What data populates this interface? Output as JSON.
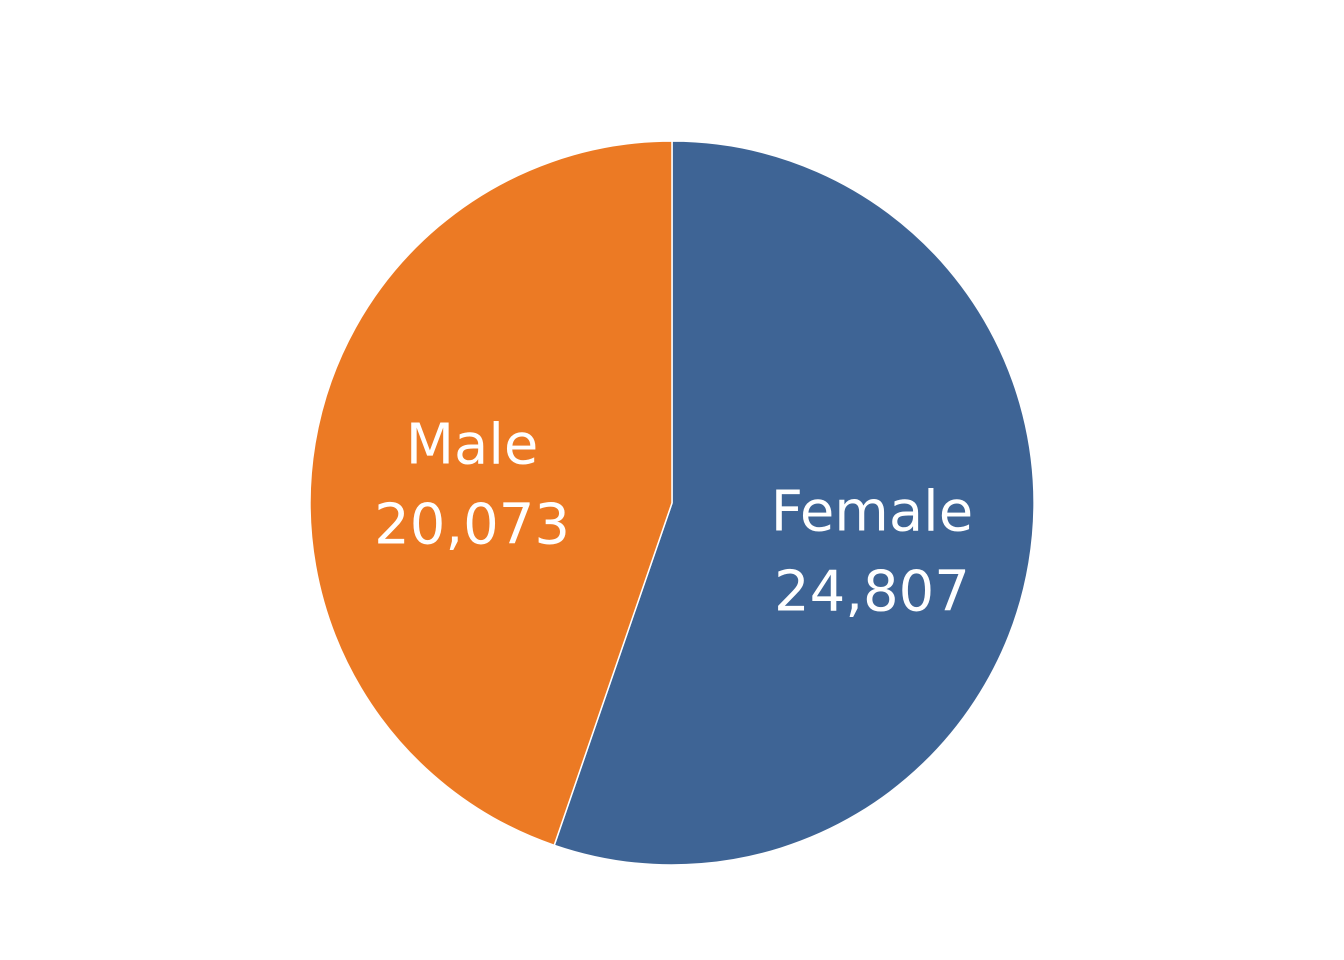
{
  "chart_data": {
    "type": "pie",
    "start": "12 o'clock",
    "direction": "clockwise",
    "slices": [
      {
        "label": "Female",
        "value": 24807,
        "value_label": "24,807",
        "color": "#3E6495"
      },
      {
        "label": "Male",
        "value": 20073,
        "value_label": "20,073",
        "color": "#EC7A24"
      }
    ],
    "legend": "none"
  }
}
